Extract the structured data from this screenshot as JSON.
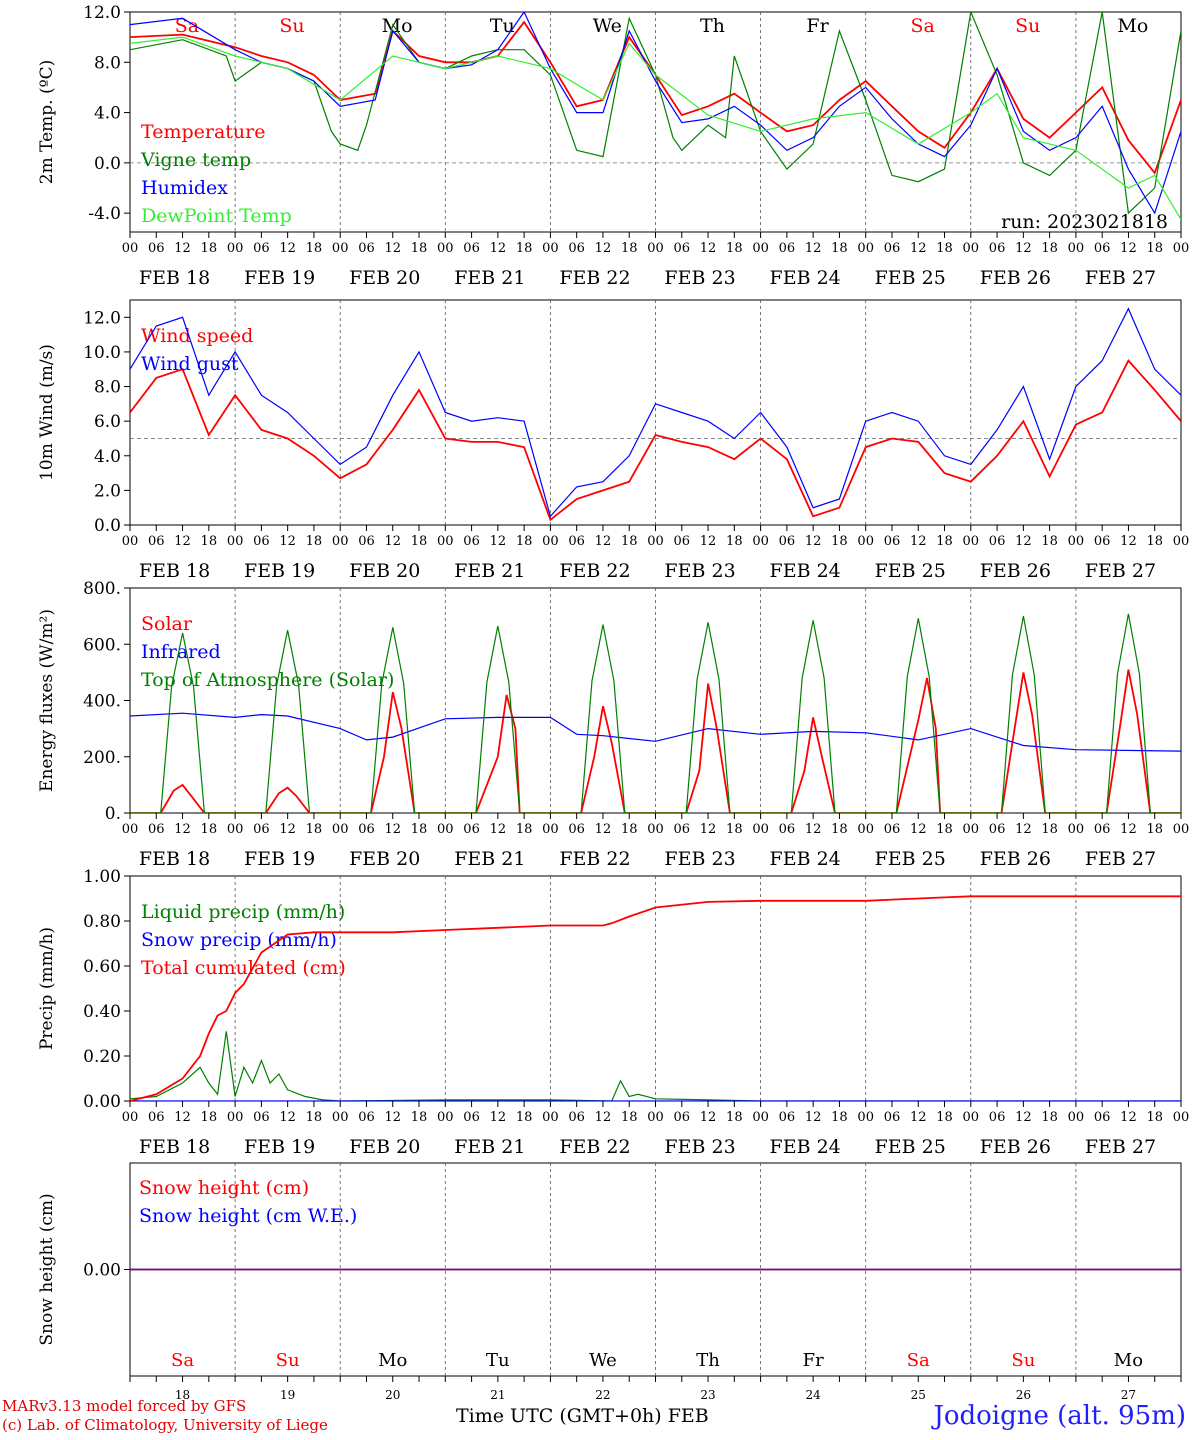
{
  "footer": {
    "model": "MARv3.13 model forced by GFS",
    "credit": "(c) Lab. of Climatology, University of Liege",
    "axis_title": "Time UTC (GMT+0h) FEB",
    "station": "Jodoigne (alt. 95m)"
  },
  "colors": {
    "red": "#ff0000",
    "green": "#008000",
    "blue": "#0000ff",
    "lightgreen": "#33ee33",
    "purple": "#800080",
    "weekend": "#ff0000",
    "weekday": "#000000"
  },
  "time_axis": {
    "hour_ticks": [
      "00",
      "06",
      "12",
      "18"
    ],
    "end_tick": "00",
    "dates": [
      "FEB 18",
      "FEB 19",
      "FEB 20",
      "FEB 21",
      "FEB 22",
      "FEB 23",
      "FEB 24",
      "FEB 25",
      "FEB 26",
      "FEB 27"
    ],
    "weekdays": [
      "Sa",
      "Su",
      "Mo",
      "Tu",
      "We",
      "Th",
      "Fr",
      "Sa",
      "Su",
      "Mo"
    ],
    "weekend": [
      true,
      true,
      false,
      false,
      false,
      false,
      false,
      true,
      true,
      false
    ],
    "day_numbers": [
      "18",
      "19",
      "20",
      "21",
      "22",
      "23",
      "24",
      "25",
      "26",
      "27"
    ]
  },
  "chart_data": [
    {
      "type": "line",
      "ylabel": "2m Temp. (ºC)",
      "ylim": [
        -5.5,
        12.0
      ],
      "yticks": [
        12.0,
        8.0,
        4.0,
        0.0,
        -4.0
      ],
      "ytick_labels": [
        "12.0",
        "8.0",
        "4.0",
        "0.0",
        "-4.0"
      ],
      "reference_line": 0.0,
      "xlim": [
        0,
        240
      ],
      "annotation": "run: 2023021818",
      "series": [
        {
          "name": "Temperature",
          "color": "red",
          "x": [
            0,
            12,
            24,
            30,
            36,
            42,
            48,
            56,
            60,
            66,
            72,
            78,
            84,
            90,
            96,
            102,
            108,
            114,
            120,
            126,
            132,
            138,
            144,
            150,
            156,
            162,
            168,
            174,
            180,
            186,
            192,
            198,
            204,
            210,
            216,
            222,
            228,
            234,
            240
          ],
          "y": [
            10.0,
            10.2,
            9.2,
            8.5,
            8.0,
            7.0,
            5.0,
            5.5,
            10.5,
            8.5,
            8.0,
            8.0,
            8.5,
            11.2,
            8.0,
            4.5,
            5.0,
            10.0,
            7.0,
            3.8,
            4.5,
            5.5,
            4.0,
            2.5,
            3.0,
            5.0,
            6.5,
            4.5,
            2.5,
            1.2,
            4.0,
            7.5,
            3.5,
            2.0,
            4.0,
            6.0,
            1.8,
            -0.8,
            5.0
          ]
        },
        {
          "name": "Vigne temp",
          "color": "green",
          "x": [
            0,
            12,
            22,
            24,
            30,
            36,
            42,
            46,
            48,
            52,
            54,
            60,
            66,
            72,
            78,
            84,
            90,
            96,
            100,
            102,
            108,
            114,
            120,
            124,
            126,
            132,
            136,
            138,
            144,
            150,
            156,
            162,
            168,
            174,
            180,
            186,
            192,
            198,
            204,
            210,
            216,
            222,
            228,
            234,
            240
          ],
          "y": [
            9.0,
            9.8,
            8.5,
            6.5,
            8.0,
            7.5,
            6.5,
            2.5,
            1.5,
            1.0,
            3.0,
            11.0,
            8.0,
            7.5,
            8.5,
            9.0,
            9.0,
            7.0,
            3.0,
            1.0,
            0.5,
            11.5,
            7.0,
            2.0,
            1.0,
            3.0,
            2.0,
            8.5,
            2.5,
            -0.5,
            1.5,
            10.5,
            5.0,
            -1.0,
            -1.5,
            -0.5,
            12.0,
            7.0,
            0.0,
            -1.0,
            1.0,
            12.0,
            -4.0,
            -2.0,
            10.5
          ]
        },
        {
          "name": "Humidex",
          "color": "blue",
          "x": [
            0,
            12,
            24,
            30,
            36,
            42,
            48,
            56,
            60,
            66,
            72,
            78,
            84,
            90,
            96,
            102,
            108,
            114,
            120,
            126,
            132,
            138,
            144,
            150,
            156,
            162,
            168,
            174,
            180,
            186,
            192,
            198,
            204,
            210,
            216,
            222,
            228,
            234,
            240
          ],
          "y": [
            11.0,
            11.5,
            9.0,
            8.0,
            7.5,
            6.5,
            4.5,
            5.0,
            10.5,
            8.0,
            7.5,
            7.8,
            9.0,
            12.0,
            7.5,
            4.0,
            4.0,
            10.5,
            6.5,
            3.2,
            3.5,
            4.5,
            3.0,
            1.0,
            2.0,
            4.5,
            6.0,
            3.5,
            1.5,
            0.5,
            3.0,
            7.5,
            2.5,
            1.0,
            2.0,
            4.5,
            -0.5,
            -4.0,
            2.5
          ]
        },
        {
          "name": "DewPoint Temp",
          "color": "lightgreen",
          "x": [
            0,
            12,
            24,
            36,
            48,
            60,
            72,
            84,
            96,
            108,
            114,
            120,
            132,
            144,
            156,
            168,
            180,
            192,
            198,
            204,
            216,
            228,
            234,
            240
          ],
          "y": [
            9.5,
            10.0,
            8.5,
            7.5,
            5.0,
            8.5,
            7.5,
            8.5,
            7.5,
            5.0,
            9.5,
            7.0,
            3.8,
            2.5,
            3.5,
            4.0,
            1.5,
            4.0,
            5.5,
            2.0,
            1.0,
            -2.0,
            -1.0,
            -4.5
          ]
        }
      ]
    },
    {
      "type": "line",
      "ylabel": "10m Wind (m/s)",
      "ylim": [
        0.0,
        13.0
      ],
      "yticks": [
        12.0,
        10.0,
        8.0,
        6.0,
        4.0,
        2.0,
        0.0
      ],
      "ytick_labels": [
        "12.0",
        "10.0",
        "8.0",
        "6.0",
        "4.0",
        "2.0",
        "0.0"
      ],
      "reference_line": 5.0,
      "xlim": [
        0,
        240
      ],
      "series": [
        {
          "name": "Wind speed",
          "color": "red",
          "x": [
            0,
            6,
            12,
            18,
            24,
            30,
            36,
            42,
            48,
            54,
            60,
            66,
            72,
            78,
            84,
            90,
            96,
            102,
            108,
            114,
            120,
            126,
            132,
            138,
            144,
            150,
            156,
            162,
            168,
            174,
            180,
            186,
            192,
            198,
            204,
            210,
            216,
            222,
            228,
            234,
            240
          ],
          "y": [
            6.5,
            8.5,
            9.0,
            5.2,
            7.5,
            5.5,
            5.0,
            4.0,
            2.7,
            3.5,
            5.5,
            7.8,
            5.0,
            4.8,
            4.8,
            4.5,
            0.3,
            1.5,
            2.0,
            2.5,
            5.2,
            4.8,
            4.5,
            3.8,
            5.0,
            3.8,
            0.5,
            1.0,
            4.5,
            5.0,
            4.8,
            3.0,
            2.5,
            4.0,
            6.0,
            2.8,
            5.8,
            6.5,
            9.5,
            7.8,
            6.0
          ]
        },
        {
          "name": "Wind gust",
          "color": "blue",
          "x": [
            0,
            6,
            12,
            18,
            24,
            30,
            36,
            42,
            48,
            54,
            60,
            66,
            72,
            78,
            84,
            90,
            96,
            102,
            108,
            114,
            120,
            126,
            132,
            138,
            144,
            150,
            156,
            162,
            168,
            174,
            180,
            186,
            192,
            198,
            204,
            210,
            216,
            222,
            228,
            234,
            240
          ],
          "y": [
            9.0,
            11.5,
            12.0,
            7.5,
            10.0,
            7.5,
            6.5,
            5.0,
            3.5,
            4.5,
            7.5,
            10.0,
            6.5,
            6.0,
            6.2,
            6.0,
            0.5,
            2.2,
            2.5,
            4.0,
            7.0,
            6.5,
            6.0,
            5.0,
            6.5,
            4.5,
            1.0,
            1.5,
            6.0,
            6.5,
            6.0,
            4.0,
            3.5,
            5.5,
            8.0,
            3.8,
            8.0,
            9.5,
            12.5,
            9.0,
            7.5
          ]
        }
      ]
    },
    {
      "type": "line",
      "ylabel": "Energy fluxes (W/m²)",
      "ylim": [
        0,
        800
      ],
      "yticks": [
        800,
        600,
        400,
        200,
        0
      ],
      "ytick_labels": [
        "800.",
        "600.",
        "400.",
        "200.",
        "0."
      ],
      "xlim": [
        0,
        240
      ],
      "series": [
        {
          "name": "Solar",
          "color": "red",
          "x": [
            0,
            7,
            10,
            12,
            14,
            17,
            24,
            31,
            34,
            36,
            38,
            41,
            48,
            55,
            58,
            60,
            62,
            65,
            72,
            79,
            84,
            86,
            88,
            89,
            96,
            103,
            106,
            108,
            110,
            113,
            120,
            127,
            130,
            132,
            134,
            137,
            144,
            151,
            154,
            156,
            158,
            161,
            168,
            175,
            180,
            182,
            184,
            185,
            192,
            199,
            202,
            204,
            206,
            209,
            216,
            223,
            226,
            228,
            230,
            233,
            240
          ],
          "y": [
            0,
            0,
            80,
            100,
            60,
            0,
            0,
            0,
            70,
            90,
            60,
            0,
            0,
            0,
            200,
            430,
            300,
            0,
            0,
            0,
            200,
            420,
            300,
            0,
            0,
            0,
            200,
            380,
            250,
            0,
            0,
            0,
            150,
            460,
            300,
            0,
            0,
            0,
            150,
            340,
            200,
            0,
            0,
            0,
            330,
            480,
            300,
            0,
            0,
            0,
            300,
            500,
            350,
            0,
            0,
            0,
            300,
            510,
            350,
            0,
            0
          ]
        },
        {
          "name": "Infrared",
          "color": "blue",
          "x": [
            0,
            12,
            24,
            30,
            36,
            48,
            54,
            60,
            72,
            84,
            96,
            102,
            108,
            120,
            132,
            144,
            156,
            168,
            180,
            192,
            204,
            216,
            240
          ],
          "y": [
            345,
            355,
            340,
            350,
            345,
            300,
            260,
            270,
            335,
            340,
            340,
            280,
            275,
            255,
            300,
            280,
            290,
            285,
            260,
            300,
            240,
            225,
            220
          ]
        },
        {
          "name": "Top of Atmosphere (Solar)",
          "color": "green",
          "x": [
            0,
            7,
            9.5,
            12,
            14.5,
            17,
            24,
            31,
            33.5,
            36,
            38.5,
            41,
            48,
            55,
            57.5,
            60,
            62.5,
            65,
            72,
            79,
            81.5,
            84,
            86.5,
            89,
            96,
            103,
            105.5,
            108,
            110.5,
            113,
            120,
            127,
            129.5,
            132,
            134.5,
            137,
            144,
            151,
            153.5,
            156,
            158.5,
            161,
            168,
            175,
            177.5,
            180,
            182.5,
            185,
            192,
            199,
            201.5,
            204,
            206.5,
            209,
            216,
            223,
            225.5,
            228,
            230.5,
            233,
            240
          ],
          "y": [
            0,
            0,
            450,
            640,
            450,
            0,
            0,
            0,
            455,
            650,
            455,
            0,
            0,
            0,
            460,
            660,
            460,
            0,
            0,
            0,
            465,
            665,
            465,
            0,
            0,
            0,
            470,
            670,
            470,
            0,
            0,
            0,
            475,
            678,
            475,
            0,
            0,
            0,
            480,
            685,
            480,
            0,
            0,
            0,
            485,
            692,
            485,
            0,
            0,
            0,
            490,
            700,
            490,
            0,
            0,
            0,
            495,
            708,
            495,
            0,
            0
          ]
        }
      ]
    },
    {
      "type": "line",
      "ylabel": "Precip (mm/h)",
      "ylim": [
        0.0,
        1.0
      ],
      "yticks": [
        1.0,
        0.8,
        0.6,
        0.4,
        0.2,
        0.0
      ],
      "ytick_labels": [
        "1.00",
        "0.80",
        "0.60",
        "0.40",
        "0.20",
        "0.00"
      ],
      "xlim": [
        0,
        240
      ],
      "series": [
        {
          "name": "Liquid precip (mm/h)",
          "color": "green",
          "x": [
            0,
            6,
            12,
            16,
            18,
            20,
            22,
            24,
            26,
            28,
            30,
            32,
            34,
            36,
            40,
            44,
            48,
            72,
            96,
            110,
            112,
            114,
            116,
            120,
            132,
            144,
            240
          ],
          "y": [
            0.01,
            0.02,
            0.08,
            0.15,
            0.08,
            0.03,
            0.31,
            0.02,
            0.15,
            0.08,
            0.18,
            0.08,
            0.12,
            0.05,
            0.02,
            0.005,
            0.0,
            0.005,
            0.005,
            0.0,
            0.09,
            0.02,
            0.03,
            0.01,
            0.005,
            0.0,
            0.0
          ]
        },
        {
          "name": "Snow precip (mm/h)",
          "color": "blue",
          "x": [
            0,
            240
          ],
          "y": [
            0.0,
            0.0
          ]
        },
        {
          "name": "Total cumulated (cm)",
          "color": "red",
          "x": [
            0,
            6,
            12,
            16,
            18,
            20,
            22,
            24,
            26,
            30,
            36,
            42,
            48,
            60,
            72,
            84,
            96,
            108,
            110,
            114,
            120,
            132,
            144,
            168,
            180,
            186,
            192,
            240
          ],
          "y": [
            0.0,
            0.03,
            0.1,
            0.2,
            0.3,
            0.38,
            0.4,
            0.48,
            0.52,
            0.66,
            0.74,
            0.75,
            0.75,
            0.75,
            0.76,
            0.77,
            0.78,
            0.78,
            0.79,
            0.82,
            0.86,
            0.885,
            0.89,
            0.89,
            0.9,
            0.905,
            0.91,
            0.91
          ]
        }
      ]
    },
    {
      "type": "line",
      "ylabel": "Snow height (cm)",
      "ylim": [
        -1.0,
        1.0
      ],
      "yticks": [
        0.0
      ],
      "ytick_labels": [
        "0.00"
      ],
      "xlim": [
        0,
        240
      ],
      "series": [
        {
          "name": "Snow height (cm)",
          "color": "red",
          "x": [
            0,
            240
          ],
          "y": [
            0.0,
            0.0
          ]
        },
        {
          "name": "Snow height (cm W.E.)",
          "color": "blue",
          "x": [
            0,
            240
          ],
          "y": [
            0.0,
            0.0
          ]
        }
      ]
    }
  ]
}
